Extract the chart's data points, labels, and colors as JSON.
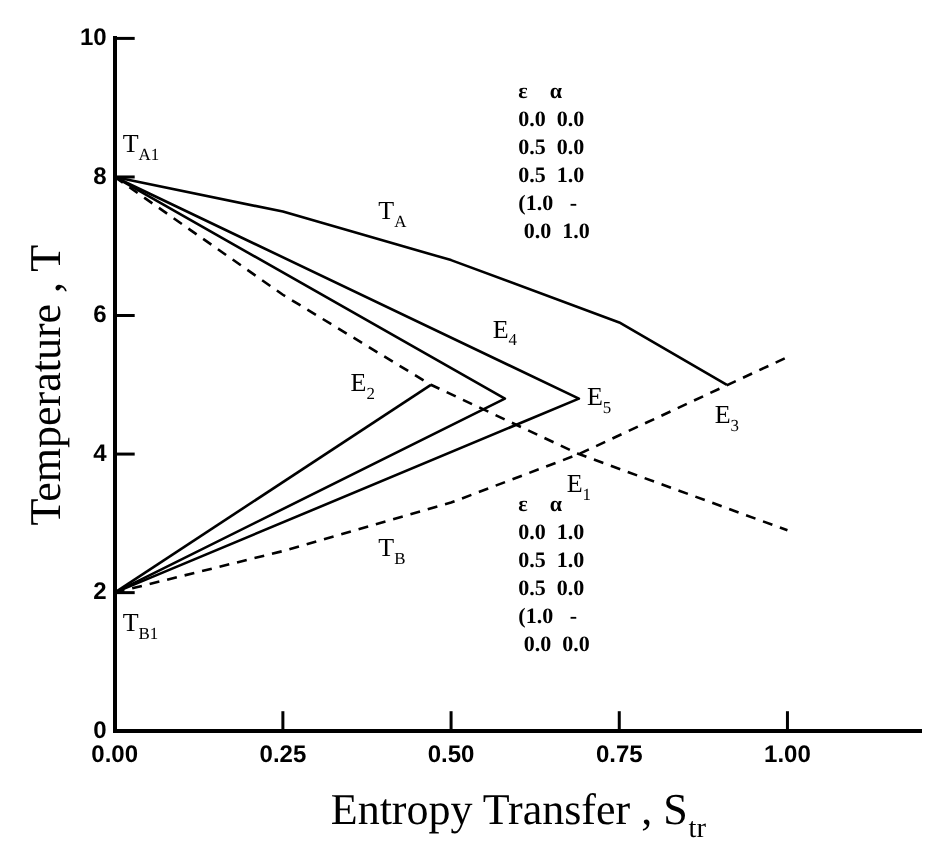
{
  "chart_data": {
    "type": "line",
    "xlabel": "Entropy Transfer , S$_{tr}$",
    "ylabel": "Temperature , T",
    "xlim": [
      0,
      1.2
    ],
    "ylim": [
      0,
      10
    ],
    "xticks": [
      {
        "value": 0,
        "label": "0.00"
      },
      {
        "value": 0.25,
        "label": "0.25"
      },
      {
        "value": 0.5,
        "label": "0.50"
      },
      {
        "value": 0.75,
        "label": "0.75"
      },
      {
        "value": 1,
        "label": "1.00"
      }
    ],
    "yticks": [
      0,
      2,
      4,
      6,
      8,
      10
    ],
    "grid": false,
    "legend": false,
    "marker": "none",
    "series": [
      {
        "color": "#000000",
        "line_style": "solid",
        "x": [
          0,
          0.25,
          0.5,
          0.75,
          0.91
        ],
        "values": [
          8,
          7.5,
          6.8,
          5.9,
          5.0
        ]
      },
      {
        "color": "#000000",
        "line_style": "solid",
        "x": [
          0,
          0.69,
          0
        ],
        "values": [
          8,
          4.8,
          2
        ]
      },
      {
        "color": "#000000",
        "line_style": "solid",
        "x": [
          0,
          0.58,
          0
        ],
        "values": [
          8,
          4.8,
          2
        ]
      },
      {
        "color": "#000000",
        "line_style": "solid",
        "x": [
          0,
          0.47
        ],
        "values": [
          2,
          5.0
        ]
      },
      {
        "color": "#000000",
        "line_style": "dashed",
        "x": [
          0,
          0.25,
          0.47,
          0.69,
          1.0
        ],
        "values": [
          8,
          6.3,
          5.0,
          4.0,
          2.9
        ]
      },
      {
        "color": "#000000",
        "line_style": "dashed",
        "x": [
          0,
          0.25,
          0.5,
          0.69,
          1.0
        ],
        "values": [
          2,
          2.6,
          3.3,
          4.0,
          5.4
        ]
      }
    ],
    "annotations": [
      {
        "text": "T$_{A1}$",
        "x": 0,
        "y": 8
      },
      {
        "text": "T$_{B1}$",
        "x": 0,
        "y": 2
      },
      {
        "text": "T$_{A}$",
        "x": 0.38,
        "y": 7.2
      },
      {
        "text": "T$_{B}$",
        "x": 0.38,
        "y": 2.9
      },
      {
        "text": "E$_{1}$",
        "x": 0.69,
        "y": 4.0
      },
      {
        "text": "E$_{2}$",
        "x": 0.47,
        "y": 5.0
      },
      {
        "text": "E$_{3}$",
        "x": 0.91,
        "y": 5.0
      },
      {
        "text": "E$_{4}$",
        "x": 0.58,
        "y": 4.8
      },
      {
        "text": "E$_{5}$",
        "x": 0.69,
        "y": 4.8
      },
      "ε    α\n0.0  0.0\n0.5  0.0\n0.5  1.0\n(1.0   -\n 0.0  1.0",
      "ε    α\n0.0  1.0\n0.5  1.0\n0.5  0.0\n(1.0   -\n 0.0  0.0"
    ]
  }
}
